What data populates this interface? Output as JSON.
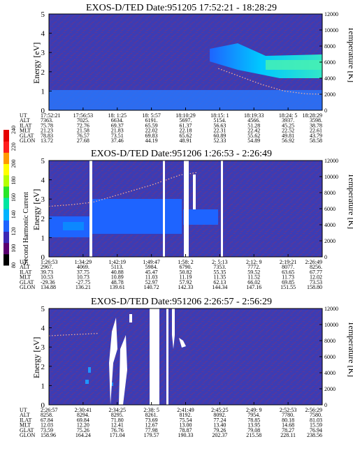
{
  "colorbar": {
    "label": "Second Harmonic Current",
    "ticks": [
      "80",
      "100",
      "120",
      "140",
      "160",
      "180",
      "200",
      "220",
      "240"
    ],
    "colors": [
      "#000000",
      "#5a0070",
      "#3c28b4",
      "#1e64ff",
      "#00b4ff",
      "#00e6a0",
      "#28e628",
      "#b4ff00",
      "#ffff00",
      "#ff9a00",
      "#ff1e1e",
      "#e60000"
    ]
  },
  "chart_data": [
    {
      "type": "heatmap",
      "title": "EXOS-D/TED   Date:951205  17:52:21 - 18:28:29",
      "ylabel": "Energy [eV]",
      "ylim": [
        0,
        5
      ],
      "y2label": "Temperature [K]",
      "y2lim": [
        0,
        12000
      ],
      "yticks": [
        "0",
        "1",
        "2",
        "3",
        "4",
        "5"
      ],
      "y2ticks": [
        "0",
        "2000",
        "4000",
        "6000",
        "8000",
        "10000",
        "12000"
      ],
      "columns": [
        "17:52:21",
        "17:56:53",
        "18: 1:25",
        "18: 5:57",
        "18:10:29",
        "18:15: 1",
        "18:19:33",
        "18:24: 5",
        "18:28:29"
      ],
      "rows": [
        {
          "label": "UT",
          "values": [
            "17:52:21",
            "17:56:53",
            "18: 1:25",
            "18: 5:57",
            "18:10:29",
            "18:15: 1",
            "18:19:33",
            "18:24: 5",
            "18:28:29"
          ]
        },
        {
          "label": "ALT",
          "values": [
            "7363.",
            "7025.",
            "6634.",
            "6191.",
            "5697.",
            "5154.",
            "4566.",
            "3937.",
            "3598."
          ]
        },
        {
          "label": "ILAT",
          "values": [
            "75.78",
            "72.76",
            "69.37",
            "65.59",
            "61.37",
            "56.63",
            "51.28",
            "45.25",
            "38.78"
          ]
        },
        {
          "label": "MLT",
          "values": [
            "21.23",
            "21.58",
            "21.83",
            "22.02",
            "22.18",
            "22.31",
            "22.42",
            "22.52",
            "22.61"
          ]
        },
        {
          "label": "GLAT",
          "values": [
            "78.83",
            "76.57",
            "73.51",
            "69.83",
            "65.62",
            "60.89",
            "55.62",
            "49.81",
            "43.79"
          ]
        },
        {
          "label": "GLON",
          "values": [
            "13.72",
            "27.68",
            "37.46",
            "44.19",
            "48.91",
            "52.33",
            "54.89",
            "56.92",
            "58.58"
          ]
        }
      ],
      "temperature_trace": {
        "t": [
          0.62,
          0.7,
          0.78,
          0.86,
          0.94,
          1.0
        ],
        "y": [
          5200,
          4200,
          3200,
          2400,
          2050,
          2000
        ]
      }
    },
    {
      "type": "heatmap",
      "title": "EXOS-D/TED   Date:951206   1:26:53 - 2:26:49",
      "ylabel": "Energy [eV]",
      "ylim": [
        0,
        5
      ],
      "y2label": "Temperature [K]",
      "y2lim": [
        0,
        12000
      ],
      "yticks": [
        "0",
        "1",
        "2",
        "3",
        "4",
        "5"
      ],
      "y2ticks": [
        "0",
        "2000",
        "4000",
        "6000",
        "8000",
        "10000",
        "12000"
      ],
      "columns": [
        "1:26:53",
        "1:34:29",
        "1:42:19",
        "1:49:47",
        "1:58: 2",
        "2: 5:13",
        "2:12: 9",
        "2:19:21",
        "2:26:49"
      ],
      "rows": [
        {
          "label": "UT",
          "values": [
            "1:26:53",
            "1:34:29",
            "1:42:19",
            "1:49:47",
            "1:58: 2",
            "2: 5:13",
            "2:12: 9",
            "2:19:21",
            "2:26:49"
          ]
        },
        {
          "label": "ALT",
          "values": [
            "2967.",
            "4069.",
            "5113.",
            "5984.",
            "6790.",
            "7353.",
            "7772.",
            "8077.",
            "8256."
          ]
        },
        {
          "label": "ILAT",
          "values": [
            "39.73",
            "37.75",
            "40.88",
            "45.47",
            "50.82",
            "55.35",
            "59.52",
            "63.65",
            "67.77"
          ]
        },
        {
          "label": "MLT",
          "values": [
            "10.53",
            "10.73",
            "10.89",
            "11.03",
            "11.19",
            "11.35",
            "11.52",
            "11.73",
            "12.02"
          ]
        },
        {
          "label": "GLAT",
          "values": [
            "-29.36",
            "-27.75",
            "48.78",
            "52.97",
            "57.92",
            "62.13",
            "66.02",
            "69.85",
            "73.53"
          ]
        },
        {
          "label": "GLON",
          "values": [
            "134.88",
            "136.21",
            "139.61",
            "140.72",
            "142.33",
            "144.34",
            "147.16",
            "151.55",
            "158.80"
          ]
        }
      ],
      "temperature_trace": {
        "t": [
          0.0,
          0.08,
          0.16,
          0.26,
          0.38,
          0.48,
          0.54
        ],
        "y": [
          6300,
          6500,
          6800,
          7800,
          9000,
          10200,
          10500
        ]
      }
    },
    {
      "type": "heatmap",
      "title": "EXOS-D/TED   Date:951206   2:26:57 - 2:56:29",
      "ylabel": "Energy [eV]",
      "ylim": [
        0,
        5
      ],
      "y2label": "Temperature [K]",
      "y2lim": [
        0,
        12000
      ],
      "yticks": [
        "0",
        "1",
        "2",
        "3",
        "4",
        "5"
      ],
      "y2ticks": [
        "0",
        "2000",
        "4000",
        "6000",
        "8000",
        "10000",
        "12000"
      ],
      "columns": [
        "2:26:57",
        "2:30:41",
        "2:34:25",
        "2:38: 5",
        "2:41:49",
        "2:45:25",
        "2:49: 9",
        "2:52:53",
        "2:56:29"
      ],
      "rows": [
        {
          "label": "UT",
          "values": [
            "2:26:57",
            "2:30:41",
            "2:34:25",
            "2:38: 5",
            "2:41:49",
            "2:45:25",
            "2:49: 9",
            "2:52:53",
            "2:56:29"
          ]
        },
        {
          "label": "ALT",
          "values": [
            "8258.",
            "8294.",
            "8295.",
            "8261.",
            "8192.",
            "8092.",
            "7954.",
            "7780.",
            "7580."
          ]
        },
        {
          "label": "ILAT",
          "values": [
            "67.84",
            "69.84",
            "71.80",
            "73.69",
            "75.54",
            "77.24",
            "78.85",
            "80.18",
            "81.03"
          ]
        },
        {
          "label": "MLT",
          "values": [
            "12.03",
            "12.20",
            "12.41",
            "12.67",
            "13.00",
            "13.40",
            "13.95",
            "14.68",
            "15.59"
          ]
        },
        {
          "label": "GLAT",
          "values": [
            "73.59",
            "75.26",
            "76.76",
            "77.98",
            "78.87",
            "79.26",
            "79.08",
            "78.27",
            "76.94"
          ]
        },
        {
          "label": "GLON",
          "values": [
            "158.96",
            "164.24",
            "171.04",
            "179.57",
            "190.33",
            "202.37",
            "215.58",
            "228.11",
            "238.56"
          ]
        }
      ],
      "temperature_trace": {
        "t": [
          0.0,
          0.06,
          0.12,
          0.18
        ],
        "y": [
          8600,
          8700,
          8800,
          8900
        ]
      }
    }
  ]
}
